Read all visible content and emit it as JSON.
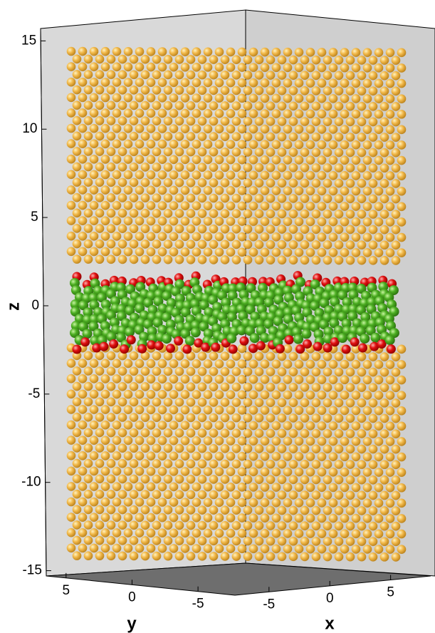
{
  "chart_data": {
    "type": "scatter3d",
    "xlabel": "x",
    "ylabel": "y",
    "zlabel": "z",
    "xlim": [
      -7.8,
      8.3
    ],
    "xticks": [
      -5,
      0,
      5
    ],
    "ylim": [
      6.5,
      -7.8
    ],
    "yticks": [
      5,
      0,
      -5
    ],
    "zlim": [
      -15.3,
      15.7
    ],
    "zticks": [
      -15,
      -10,
      -5,
      0,
      5,
      10,
      15
    ]
  }
}
